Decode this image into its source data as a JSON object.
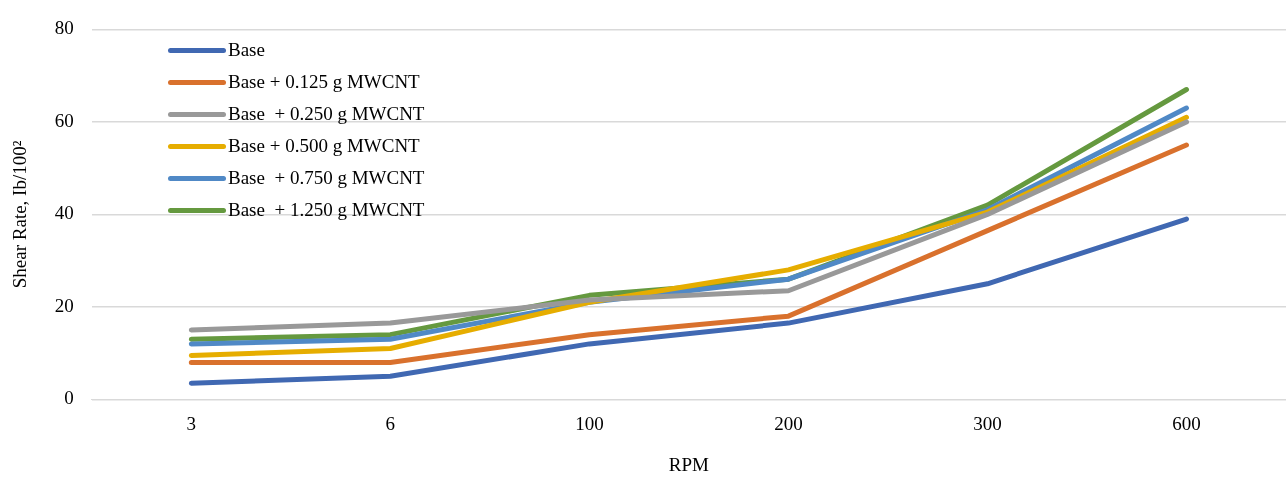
{
  "chart_data": {
    "type": "line",
    "xlabel": "RPM",
    "ylabel": "Shear Rate, Ib/100²",
    "categories": [
      "3",
      "6",
      "100",
      "200",
      "300",
      "600"
    ],
    "ylim": [
      0,
      80
    ],
    "yticks": [
      0,
      20,
      40,
      60,
      80
    ],
    "grid": "y",
    "legend": "top left",
    "marker": "none",
    "line_style": "solid",
    "series": [
      {
        "name": "Base",
        "color": "#4068b2",
        "values": [
          3.5,
          5,
          12,
          16.5,
          25,
          39
        ]
      },
      {
        "name": "Base + 0.125 g MWCNT",
        "color": "#d9712d",
        "values": [
          8,
          8,
          14,
          18,
          36.5,
          55
        ]
      },
      {
        "name": "Base  + 0.250 g MWCNT",
        "color": "#999999",
        "values": [
          15,
          16.5,
          21.5,
          23.5,
          40,
          60
        ]
      },
      {
        "name": "Base + 0.500 g MWCNT",
        "color": "#e6ad00",
        "values": [
          9.5,
          11,
          21,
          28,
          40.5,
          61
        ]
      },
      {
        "name": "Base  + 0.750 g MWCNT",
        "color": "#5089c6",
        "values": [
          12,
          13,
          21,
          26,
          41,
          63
        ]
      },
      {
        "name": "Base  + 1.250 g MWCNT",
        "color": "#65993f",
        "values": [
          13,
          14,
          22.5,
          26,
          42,
          67
        ]
      }
    ]
  }
}
